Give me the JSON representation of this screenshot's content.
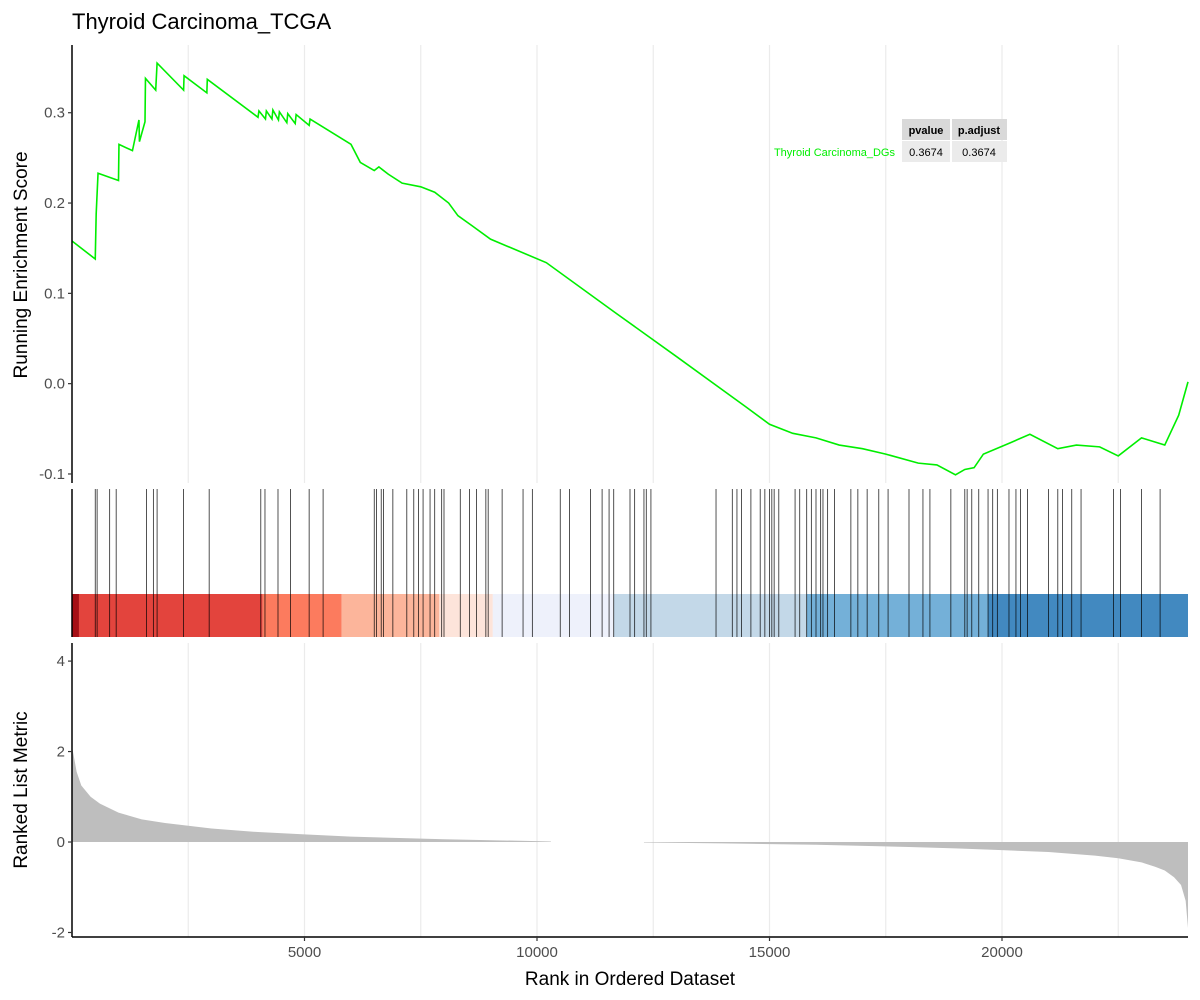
{
  "chart_data": {
    "type": "line",
    "title": "Thyroid Carcinoma_TCGA",
    "xlabel": "Rank in Ordered Dataset",
    "xlim": [
      0,
      24000
    ],
    "x_ticks": [
      5000,
      10000,
      15000,
      20000
    ],
    "grid": true,
    "panels": {
      "enrichment": {
        "ylabel": "Running Enrichment Score",
        "ylim": [
          -0.11,
          0.375
        ],
        "y_ticks": [
          -0.1,
          0.0,
          0.1,
          0.2,
          0.3
        ],
        "y_tick_labels": [
          "-0.1",
          "0.0",
          "0.1",
          "0.2",
          "0.3"
        ],
        "series": [
          {
            "name": "Thyroid Carcinoma_DGs",
            "color": "#00ee00",
            "x": [
              0,
              500,
              520,
              560,
              1000,
              1010,
              1300,
              1440,
              1450,
              1570,
              1580,
              1800,
              1830,
              2400,
              2410,
              2900,
              2910,
              4000,
              4020,
              4160,
              4180,
              4300,
              4320,
              4440,
              4460,
              4620,
              4640,
              4800,
              4820,
              5100,
              5120,
              6000,
              6200,
              6500,
              6600,
              6800,
              7100,
              7500,
              7800,
              8100,
              8300,
              8600,
              9000,
              10200,
              11700,
              13000,
              14500,
              15000,
              15500,
              16000,
              16500,
              17000,
              17500,
              18200,
              18600,
              19000,
              19200,
              19400,
              19600,
              20200,
              20600,
              21200,
              21600,
              22100,
              22500,
              23000,
              23500,
              23800,
              24000
            ],
            "y": [
              0.158,
              0.138,
              0.188,
              0.233,
              0.225,
              0.265,
              0.258,
              0.292,
              0.268,
              0.29,
              0.338,
              0.325,
              0.355,
              0.325,
              0.341,
              0.322,
              0.337,
              0.295,
              0.302,
              0.293,
              0.302,
              0.293,
              0.303,
              0.292,
              0.301,
              0.289,
              0.299,
              0.288,
              0.298,
              0.286,
              0.293,
              0.265,
              0.245,
              0.236,
              0.24,
              0.232,
              0.222,
              0.218,
              0.212,
              0.2,
              0.186,
              0.175,
              0.16,
              0.134,
              0.078,
              0.03,
              -0.026,
              -0.045,
              -0.055,
              -0.06,
              -0.068,
              -0.072,
              -0.078,
              -0.088,
              -0.09,
              -0.101,
              -0.095,
              -0.093,
              -0.078,
              -0.065,
              -0.056,
              -0.072,
              -0.068,
              -0.07,
              -0.08,
              -0.06,
              -0.068,
              -0.035,
              0.002
            ]
          }
        ],
        "table": {
          "headers": [
            "pvalue",
            "p.adjust"
          ],
          "rows": [
            {
              "name": "Thyroid Carcinoma_DGs",
              "values": [
                "0.3674",
                "0.3674"
              ]
            }
          ]
        }
      },
      "hits": {
        "positions": [
          500,
          540,
          810,
          950,
          1600,
          1750,
          1830,
          2400,
          2950,
          4060,
          4150,
          4430,
          4700,
          5100,
          5400,
          6500,
          6550,
          6650,
          6700,
          6900,
          7200,
          7350,
          7450,
          7550,
          7700,
          7800,
          7950,
          8000,
          8350,
          8550,
          8700,
          8900,
          8950,
          9250,
          9700,
          9900,
          10500,
          10700,
          11150,
          11400,
          11550,
          11650,
          12000,
          12100,
          12300,
          12350,
          12450,
          13850,
          14200,
          14300,
          14400,
          14600,
          14800,
          14900,
          15000,
          15050,
          15100,
          15200,
          15550,
          15650,
          15800,
          15900,
          16000,
          16100,
          16150,
          16250,
          16400,
          16750,
          16900,
          17100,
          17350,
          17550,
          18000,
          18300,
          18450,
          18900,
          19200,
          19250,
          19350,
          19500,
          19700,
          19800,
          19900,
          20150,
          20300,
          20400,
          20550,
          21000,
          21200,
          21300,
          21500,
          21700,
          22400,
          22550,
          23000,
          23400
        ],
        "color_bands": [
          {
            "from": 0,
            "to": 150,
            "color": "#a50f15"
          },
          {
            "from": 150,
            "to": 4100,
            "color": "#e3443d"
          },
          {
            "from": 4100,
            "to": 5800,
            "color": "#fc7b5e"
          },
          {
            "from": 5800,
            "to": 7900,
            "color": "#fcb59b"
          },
          {
            "from": 7900,
            "to": 9050,
            "color": "#fde4da"
          },
          {
            "from": 9050,
            "to": 11650,
            "color": "#eef1fb"
          },
          {
            "from": 11650,
            "to": 15800,
            "color": "#c3d8e8"
          },
          {
            "from": 15800,
            "to": 19700,
            "color": "#74b0d8"
          },
          {
            "from": 19700,
            "to": 24000,
            "color": "#4289c0"
          }
        ]
      },
      "ranked": {
        "ylabel": "Ranked List Metric",
        "ylim": [
          -2.1,
          4.4
        ],
        "y_ticks": [
          -2,
          0,
          2,
          4
        ],
        "y_tick_labels": [
          "-2",
          "0",
          "2",
          "4"
        ],
        "gap": [
          10300,
          12300
        ],
        "profile_x": [
          0,
          30,
          100,
          200,
          400,
          600,
          800,
          1000,
          1500,
          2000,
          3000,
          4000,
          5000,
          6000,
          8000,
          10000,
          10300,
          12300,
          14000,
          16000,
          18000,
          19000,
          20000,
          21000,
          22000,
          22500,
          23000,
          23300,
          23500,
          23700,
          23850,
          23950,
          24000
        ],
        "profile_y": [
          2.1,
          1.95,
          1.55,
          1.25,
          1.0,
          0.85,
          0.75,
          0.65,
          0.5,
          0.42,
          0.3,
          0.22,
          0.17,
          0.12,
          0.06,
          0.02,
          0.01,
          -0.01,
          -0.03,
          -0.06,
          -0.11,
          -0.14,
          -0.18,
          -0.22,
          -0.3,
          -0.36,
          -0.45,
          -0.55,
          -0.63,
          -0.78,
          -0.95,
          -1.3,
          -1.9
        ],
        "fill_color": "#bebebe"
      }
    }
  }
}
